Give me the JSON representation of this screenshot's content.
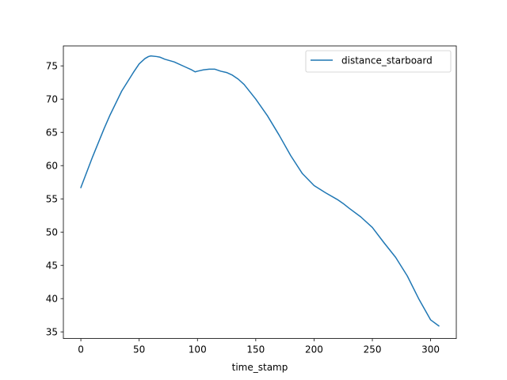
{
  "chart_data": {
    "type": "line",
    "title": "",
    "xlabel": "time_stamp",
    "ylabel": "",
    "xlim": [
      -15,
      322
    ],
    "ylim": [
      34,
      78
    ],
    "xticks": [
      0,
      50,
      100,
      150,
      200,
      250,
      300
    ],
    "yticks": [
      35,
      40,
      45,
      50,
      55,
      60,
      65,
      70,
      75
    ],
    "grid": false,
    "legend_position": "top-right",
    "colors": {
      "series": "#1f77b4",
      "axes": "#000000",
      "background": "#ffffff"
    },
    "series": [
      {
        "name": "distance_starboard",
        "x": [
          0,
          10,
          20,
          25,
          35,
          45,
          50,
          55,
          58,
          60,
          65,
          68,
          72,
          80,
          90,
          95,
          98,
          100,
          105,
          110,
          115,
          120,
          125,
          130,
          135,
          140,
          150,
          160,
          170,
          180,
          190,
          200,
          210,
          220,
          225,
          230,
          240,
          250,
          260,
          270,
          280,
          290,
          300,
          307
        ],
        "y": [
          56.7,
          61.3,
          65.6,
          67.6,
          71.2,
          74.0,
          75.3,
          76.1,
          76.4,
          76.5,
          76.4,
          76.3,
          76.0,
          75.6,
          74.8,
          74.4,
          74.1,
          74.2,
          74.4,
          74.5,
          74.5,
          74.2,
          74.0,
          73.6,
          73.0,
          72.2,
          70.0,
          67.5,
          64.6,
          61.5,
          58.8,
          57.0,
          55.9,
          54.9,
          54.3,
          53.6,
          52.3,
          50.7,
          48.4,
          46.2,
          43.4,
          39.9,
          36.8,
          35.9
        ]
      }
    ]
  }
}
